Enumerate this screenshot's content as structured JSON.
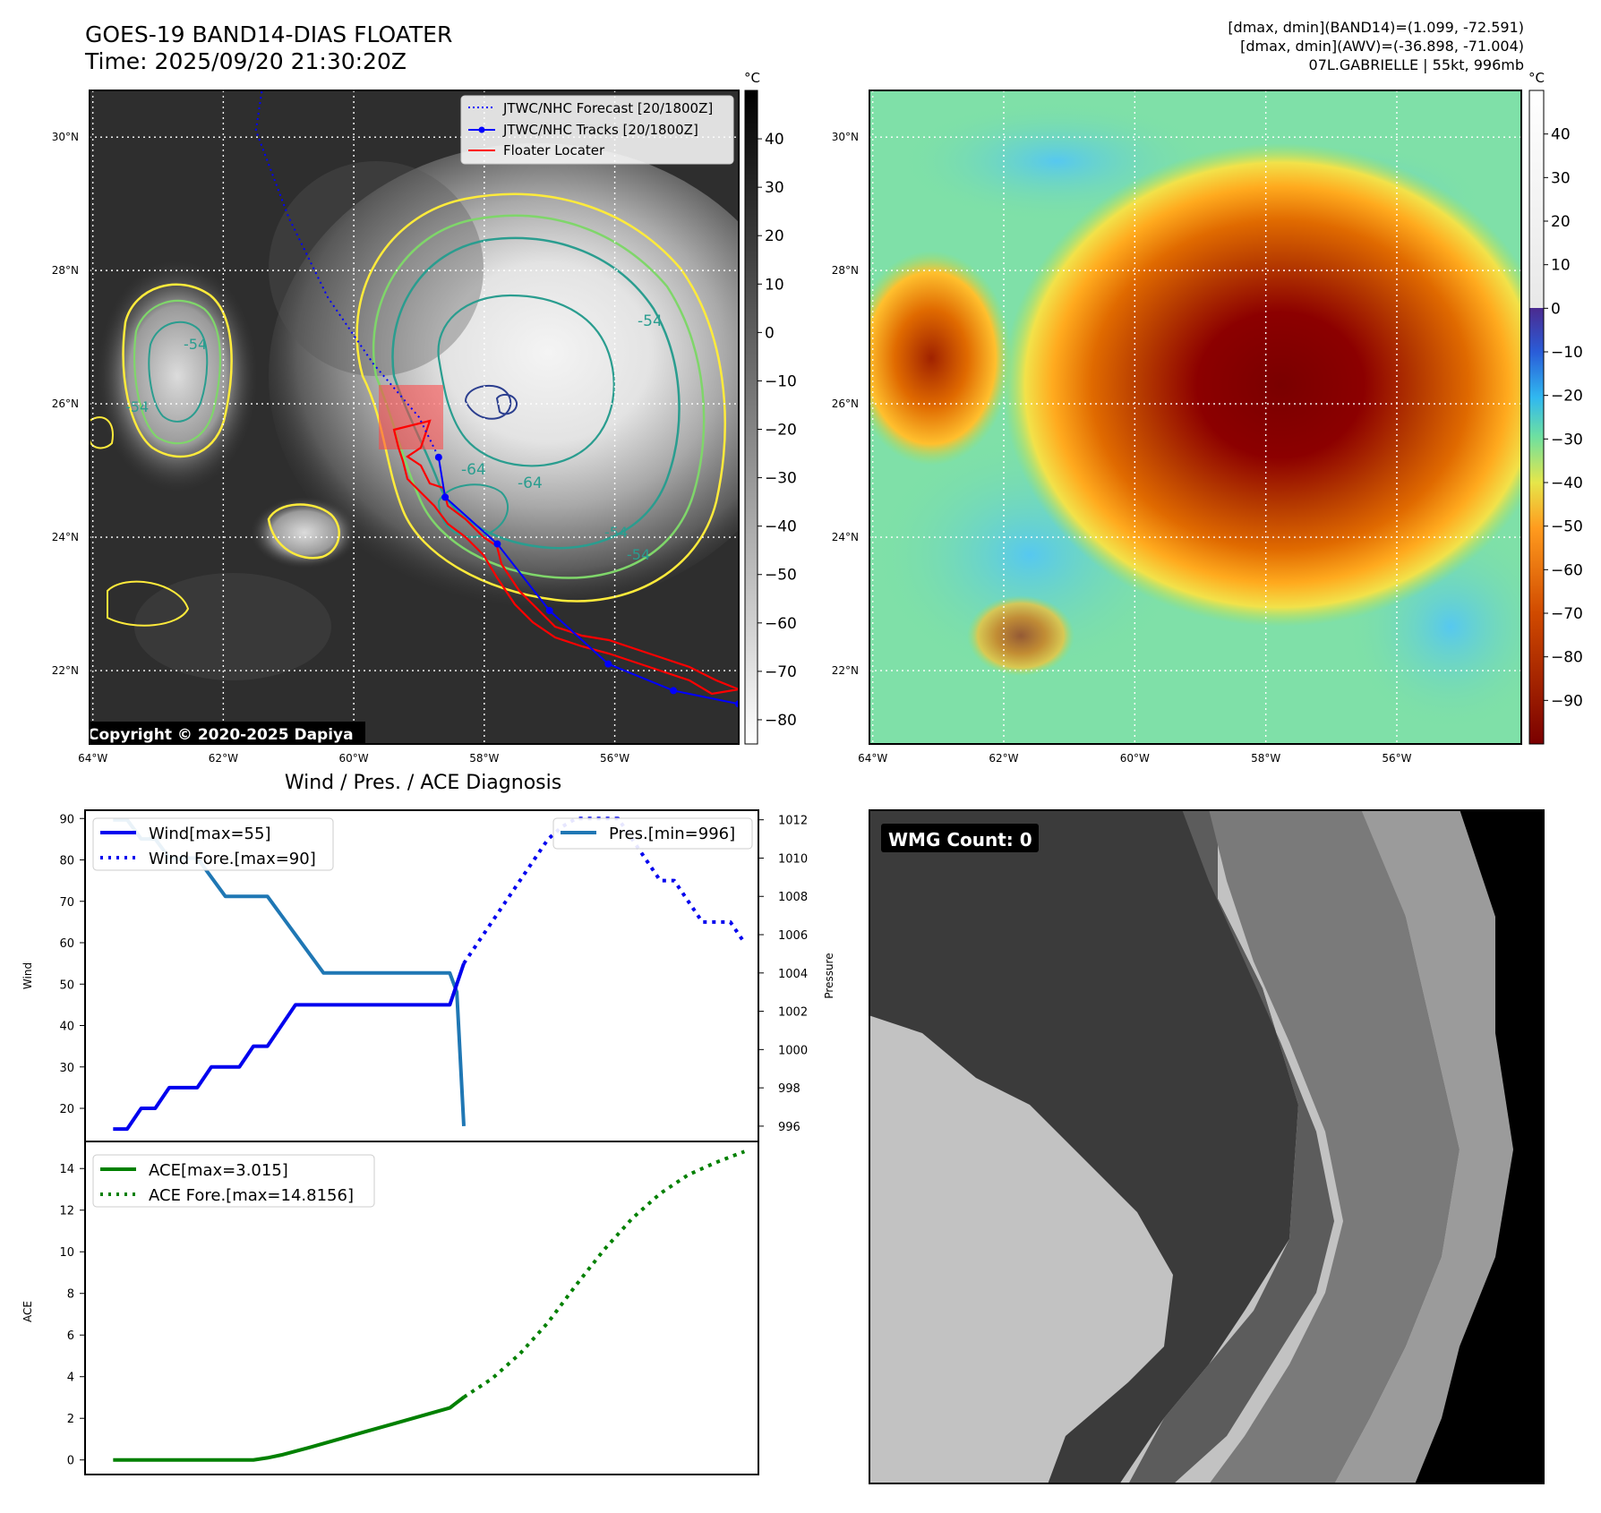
{
  "header": {
    "title_line1": "GOES-19 BAND14-DIAS FLOATER",
    "title_line2": "Time: 2025/09/20 21:30:20Z",
    "info_line1": "[dmax, dmin](BAND14)=(1.099, -72.591)",
    "info_line2": "[dmax, dmin](AWV)=(-36.898, -71.004)",
    "info_line3": "07L.GABRIELLE | 55kt, 996mb"
  },
  "map_axes": {
    "lat_labels": [
      "30°N",
      "28°N",
      "26°N",
      "24°N",
      "22°N"
    ],
    "lat_values": [
      30,
      28,
      26,
      24,
      22
    ],
    "lon_labels": [
      "64°W",
      "62°W",
      "60°W",
      "58°W",
      "56°W"
    ],
    "lon_values": [
      -64,
      -62,
      -60,
      -58,
      -56
    ],
    "lon_range": [
      -64.05,
      -54.1
    ],
    "lat_range": [
      20.9,
      30.7
    ]
  },
  "ir_panel": {
    "legend": [
      "JTWC/NHC Forecast [20/1800Z]",
      "JTWC/NHC Tracks [20/1800Z]",
      "Floater Locater"
    ],
    "copyright": "Copyright © 2020-2025 Dapiya",
    "contour_labels": [
      "-54",
      "-64",
      "-64",
      "-54",
      "-54",
      "-54",
      "-54"
    ],
    "colorbar_unit": "°C",
    "colorbar_ticks": [
      "40",
      "30",
      "20",
      "10",
      "0",
      "−10",
      "−20",
      "−30",
      "−40",
      "−50",
      "−60",
      "−70",
      "−80"
    ],
    "colorbar_values": [
      40,
      30,
      20,
      10,
      0,
      -10,
      -20,
      -30,
      -40,
      -50,
      -60,
      -70,
      -80
    ],
    "colorbar_range": [
      -85,
      50
    ],
    "track_points": [
      [
        -58.7,
        25.2
      ],
      [
        -58.6,
        24.6
      ],
      [
        -57.8,
        23.9
      ],
      [
        -57.0,
        22.9
      ],
      [
        -56.1,
        22.1
      ],
      [
        -55.1,
        21.7
      ],
      [
        -54.1,
        21.5
      ]
    ],
    "forecast_points": [
      [
        -61.3,
        31.4
      ],
      [
        -61.5,
        30.1
      ],
      [
        -61.0,
        28.8
      ],
      [
        -60.4,
        27.6
      ],
      [
        -59.7,
        26.6
      ],
      [
        -59.0,
        25.8
      ],
      [
        -58.7,
        25.2
      ]
    ],
    "colors": {
      "forecast": "#0000ff",
      "track": "#0000ff",
      "locater": "#ff0000",
      "contour_outer": "#ffeb3b",
      "contour_mid": "#7fd66a",
      "contour_inner": "#2a9d8f",
      "contour_core": "#2c3f8f"
    }
  },
  "wv_panel": {
    "colorbar_unit": "°C",
    "colorbar_ticks": [
      "40",
      "30",
      "20",
      "10",
      "0",
      "−10",
      "−20",
      "−30",
      "−40",
      "−50",
      "−60",
      "−70",
      "−80",
      "−90"
    ],
    "colorbar_values": [
      40,
      30,
      20,
      10,
      0,
      -10,
      -20,
      -30,
      -40,
      -50,
      -60,
      -70,
      -80,
      -90
    ],
    "colorbar_range": [
      -100,
      50
    ]
  },
  "diag_title": "Wind / Pres. / ACE Diagnosis",
  "chart_data": [
    {
      "type": "line",
      "ylabel": "Wind",
      "ylabel_right": "Pressure",
      "y_ticks": [
        20,
        30,
        40,
        50,
        60,
        70,
        80,
        90
      ],
      "ylim": [
        12,
        92
      ],
      "y2_ticks": [
        996,
        998,
        1000,
        1002,
        1004,
        1006,
        1008,
        1010,
        1012
      ],
      "y2lim": [
        995.2,
        1012.5
      ],
      "xlim": [
        0,
        48
      ],
      "series": [
        {
          "name": "Wind[max=55]",
          "style": "solid",
          "color": "#0000ee",
          "x": [
            2,
            3,
            4,
            5,
            6,
            7,
            8,
            9,
            10,
            11,
            12,
            13,
            14,
            15,
            16,
            17,
            18,
            19,
            20,
            21,
            22,
            23,
            24,
            25,
            26,
            27
          ],
          "values": [
            15,
            15,
            20,
            20,
            25,
            25,
            25,
            30,
            30,
            30,
            35,
            35,
            40,
            45,
            45,
            45,
            45,
            45,
            45,
            45,
            45,
            45,
            45,
            45,
            45,
            55
          ]
        },
        {
          "name": "Wind Fore.[max=90]",
          "style": "dotted",
          "color": "#0000ee",
          "x": [
            27,
            28,
            29,
            30,
            31,
            32,
            33,
            34,
            35,
            36,
            37,
            38,
            39,
            40,
            41,
            42,
            43,
            44,
            45,
            46,
            47
          ],
          "values": [
            55,
            60,
            65,
            70,
            75,
            80,
            85,
            88,
            90,
            90,
            90,
            90,
            85,
            80,
            75,
            75,
            70,
            65,
            65,
            65,
            60
          ]
        },
        {
          "name": "Pres.[min=996]",
          "style": "solid",
          "color": "#1f77b4",
          "axis": "right",
          "x": [
            2,
            3,
            4,
            5,
            6,
            7,
            8,
            9,
            10,
            11,
            12,
            13,
            14,
            15,
            16,
            17,
            18,
            19,
            20,
            21,
            22,
            23,
            24,
            25,
            26,
            26.5,
            27
          ],
          "values": [
            1012,
            1012,
            1011,
            1011,
            1010,
            1010,
            1010,
            1009,
            1008,
            1008,
            1008,
            1008,
            1007,
            1006,
            1005,
            1004,
            1004,
            1004,
            1004,
            1004,
            1004,
            1004,
            1004,
            1004,
            1004,
            1003,
            996
          ]
        }
      ]
    },
    {
      "type": "line",
      "ylabel": "ACE",
      "y_ticks": [
        0,
        2,
        4,
        6,
        8,
        10,
        12,
        14
      ],
      "ylim": [
        -0.7,
        15.3
      ],
      "xlim": [
        0,
        48
      ],
      "series": [
        {
          "name": "ACE[max=3.015]",
          "style": "solid",
          "color": "#008000",
          "x": [
            2,
            5,
            8,
            10,
            12,
            13,
            14,
            16,
            18,
            20,
            22,
            24,
            26,
            27
          ],
          "values": [
            0,
            0,
            0,
            0,
            0,
            0.1,
            0.24,
            0.6,
            0.98,
            1.36,
            1.74,
            2.12,
            2.5,
            3.015
          ]
        },
        {
          "name": "ACE Fore.[max=14.8156]",
          "style": "dotted",
          "color": "#008000",
          "x": [
            27,
            29,
            31,
            33,
            35,
            37,
            39,
            41,
            43,
            45,
            47
          ],
          "values": [
            3.015,
            3.9,
            5.1,
            6.6,
            8.4,
            10.1,
            11.6,
            12.8,
            13.7,
            14.3,
            14.8156
          ]
        }
      ]
    }
  ],
  "wmg_panel": {
    "label": "WMG Count: 0"
  }
}
